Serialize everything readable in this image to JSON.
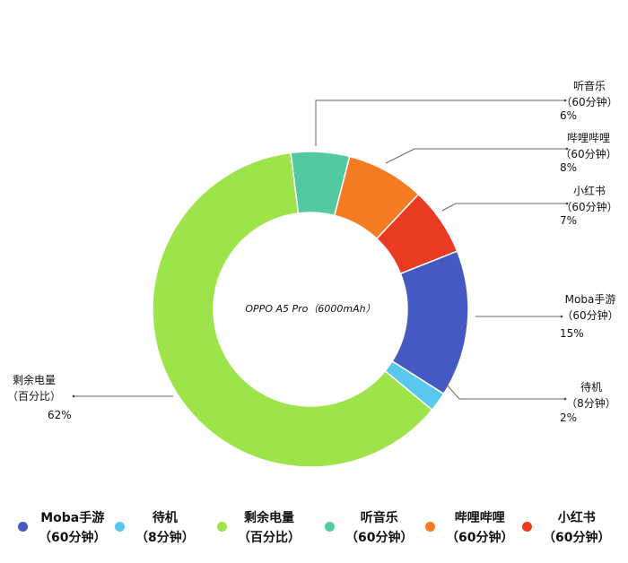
{
  "chart_data": {
    "type": "pie",
    "donut": true,
    "center_label": "OPPO A5 Pro（6000mAh）",
    "slices": [
      {
        "name": "Moba手游",
        "sub": "（60分钟）",
        "value": 15,
        "pct": "15%",
        "color": "#4559c4"
      },
      {
        "name": "待机",
        "sub": "（8分钟）",
        "value": 2,
        "pct": "2%",
        "color": "#58c8ef"
      },
      {
        "name": "剩余电量",
        "sub": "（百分比）",
        "value": 62,
        "pct": "62%",
        "color": "#9de34a"
      },
      {
        "name": "听音乐",
        "sub": "（60分钟）",
        "value": 6,
        "pct": "6%",
        "color": "#53c9a2"
      },
      {
        "name": "哔哩哔哩",
        "sub": "（60分钟）",
        "value": 8,
        "pct": "8%",
        "color": "#f57c22"
      },
      {
        "name": "小红书",
        "sub": "（60分钟）",
        "value": 7,
        "pct": "7%",
        "color": "#ea3a22"
      }
    ],
    "legend_position": "bottom"
  }
}
